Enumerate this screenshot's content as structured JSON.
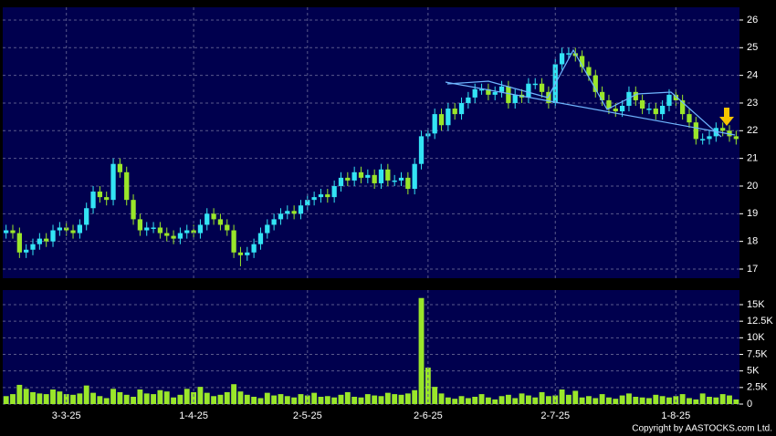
{
  "chart_data": [
    {
      "type": "candlestick",
      "open": [
        18.3,
        18.4,
        18.3,
        17.6,
        17.7,
        17.9,
        18.1,
        18.0,
        18.4,
        18.5,
        18.4,
        18.3,
        18.6,
        19.2,
        19.8,
        19.6,
        19.5,
        20.8,
        20.5,
        19.5,
        18.8,
        18.4,
        18.5,
        18.5,
        18.3,
        18.2,
        18.1,
        18.3,
        18.4,
        18.3,
        18.6,
        19.0,
        18.8,
        18.6,
        18.4,
        17.6,
        17.5,
        17.6,
        17.9,
        18.3,
        18.6,
        18.8,
        19.0,
        19.1,
        19.0,
        19.3,
        19.5,
        19.6,
        19.7,
        19.6,
        20.0,
        20.3,
        20.2,
        20.5,
        20.3,
        20.4,
        20.1,
        20.6,
        20.2,
        20.2,
        20.3,
        19.9,
        20.8,
        21.8,
        21.9,
        22.6,
        22.2,
        22.8,
        22.6,
        23.0,
        23.2,
        23.5,
        23.5,
        23.3,
        23.4,
        23.6,
        23.0,
        23.3,
        23.2,
        23.7,
        23.7,
        23.4,
        23.0,
        24.4,
        24.8,
        24.8,
        24.7,
        24.3,
        24.0,
        23.4,
        23.1,
        22.8,
        22.7,
        22.9,
        23.4,
        23.1,
        22.8,
        22.8,
        22.6,
        22.9,
        23.3,
        23.1,
        22.6,
        22.3,
        21.7,
        21.7,
        21.8,
        22.1,
        22.0,
        21.8
      ],
      "high": [
        18.6,
        18.6,
        18.5,
        17.9,
        18.1,
        18.3,
        18.3,
        18.6,
        18.7,
        18.7,
        18.6,
        18.8,
        19.4,
        20.0,
        20.0,
        19.8,
        21.0,
        21.0,
        20.7,
        19.7,
        19.0,
        18.7,
        18.7,
        18.7,
        18.5,
        18.4,
        18.5,
        18.6,
        18.6,
        18.8,
        19.2,
        19.2,
        19.0,
        18.8,
        18.6,
        17.8,
        17.8,
        18.1,
        18.5,
        18.8,
        19.0,
        19.2,
        19.3,
        19.3,
        19.5,
        19.7,
        19.8,
        19.9,
        19.9,
        20.2,
        20.5,
        20.5,
        20.7,
        20.7,
        20.6,
        20.6,
        20.8,
        20.8,
        20.4,
        20.5,
        20.5,
        21.0,
        22.0,
        22.1,
        22.8,
        22.8,
        23.0,
        23.0,
        23.2,
        23.4,
        23.7,
        23.7,
        23.7,
        23.6,
        23.8,
        23.8,
        23.5,
        23.5,
        23.9,
        23.9,
        23.9,
        23.6,
        24.6,
        25.0,
        25.0,
        25.0,
        24.9,
        24.5,
        24.2,
        23.6,
        23.3,
        23.0,
        23.1,
        23.6,
        23.6,
        23.3,
        23.0,
        23.0,
        23.1,
        23.5,
        23.5,
        23.3,
        22.8,
        22.5,
        21.9,
        22.0,
        22.3,
        22.3,
        22.2,
        22.0
      ],
      "low": [
        18.1,
        18.1,
        17.4,
        17.4,
        17.5,
        17.7,
        17.8,
        17.8,
        18.2,
        18.2,
        18.1,
        18.1,
        18.4,
        19.0,
        19.4,
        19.3,
        19.3,
        20.3,
        19.3,
        18.6,
        18.2,
        18.2,
        18.3,
        18.1,
        18.0,
        17.9,
        17.9,
        18.1,
        18.1,
        18.1,
        18.4,
        18.6,
        18.4,
        18.2,
        17.4,
        17.1,
        17.3,
        17.4,
        17.7,
        18.1,
        18.4,
        18.6,
        18.8,
        18.8,
        18.8,
        19.1,
        19.3,
        19.4,
        19.4,
        19.4,
        19.8,
        20.0,
        20.0,
        20.1,
        20.1,
        19.9,
        19.9,
        20.0,
        20.0,
        20.0,
        19.7,
        19.7,
        20.6,
        21.6,
        21.7,
        22.0,
        22.0,
        22.4,
        22.4,
        22.8,
        23.0,
        23.3,
        23.1,
        23.1,
        23.2,
        22.8,
        22.8,
        23.0,
        23.0,
        23.5,
        23.2,
        22.8,
        22.8,
        24.2,
        24.6,
        24.5,
        24.1,
        23.8,
        23.2,
        22.9,
        22.6,
        22.5,
        22.5,
        22.7,
        22.9,
        22.6,
        22.6,
        22.4,
        22.4,
        22.7,
        22.9,
        22.4,
        22.1,
        21.5,
        21.5,
        21.5,
        21.6,
        21.8,
        21.6,
        21.5
      ],
      "close": [
        18.4,
        18.3,
        17.6,
        17.7,
        17.9,
        18.1,
        18.0,
        18.4,
        18.5,
        18.4,
        18.3,
        18.6,
        19.2,
        19.8,
        19.6,
        19.5,
        20.8,
        20.5,
        19.5,
        18.8,
        18.4,
        18.5,
        18.5,
        18.3,
        18.2,
        18.1,
        18.3,
        18.4,
        18.3,
        18.6,
        19.0,
        18.8,
        18.6,
        18.4,
        17.6,
        17.5,
        17.6,
        17.9,
        18.3,
        18.6,
        18.8,
        19.0,
        19.1,
        19.0,
        19.3,
        19.5,
        19.6,
        19.7,
        19.6,
        20.0,
        20.3,
        20.2,
        20.5,
        20.3,
        20.4,
        20.1,
        20.6,
        20.2,
        20.2,
        20.3,
        19.9,
        20.8,
        21.8,
        21.9,
        22.6,
        22.2,
        22.8,
        22.6,
        23.0,
        23.2,
        23.5,
        23.5,
        23.3,
        23.4,
        23.6,
        23.0,
        23.3,
        23.2,
        23.7,
        23.7,
        23.4,
        23.0,
        24.4,
        24.8,
        24.8,
        24.7,
        24.3,
        24.0,
        23.4,
        23.1,
        22.8,
        22.7,
        22.9,
        23.4,
        23.1,
        22.8,
        22.8,
        22.6,
        22.9,
        23.3,
        23.1,
        22.6,
        22.3,
        21.7,
        21.7,
        21.8,
        22.1,
        22.0,
        21.8,
        21.7
      ],
      "up_color": "#33e4f4",
      "down_color": "#9ae62a",
      "ylim": [
        16.67,
        26.46
      ],
      "yticks": [
        17,
        18,
        19,
        20,
        21,
        22,
        23,
        24,
        25,
        26
      ],
      "grid": true
    },
    {
      "type": "bar",
      "categories": [
        null,
        null,
        null,
        null,
        null,
        null,
        null,
        null,
        null,
        "3-3-25",
        null,
        null,
        null,
        null,
        null,
        null,
        null,
        null,
        null,
        null,
        null,
        null,
        null,
        null,
        null,
        null,
        null,
        null,
        "1-4-25",
        null,
        null,
        null,
        null,
        null,
        null,
        null,
        null,
        null,
        null,
        null,
        null,
        null,
        null,
        null,
        null,
        "2-5-25",
        null,
        null,
        null,
        null,
        null,
        null,
        null,
        null,
        null,
        null,
        null,
        null,
        null,
        null,
        null,
        null,
        null,
        "2-6-25",
        null,
        null,
        null,
        null,
        null,
        null,
        null,
        null,
        null,
        null,
        null,
        null,
        null,
        null,
        null,
        null,
        null,
        null,
        "2-7-25",
        null,
        null,
        null,
        null,
        null,
        null,
        null,
        null,
        null,
        null,
        null,
        null,
        null,
        null,
        null,
        null,
        null,
        "1-8-25",
        null,
        null,
        null,
        null,
        null,
        null,
        null,
        null,
        null
      ],
      "values": [
        1200,
        1500,
        2900,
        2300,
        1800,
        1600,
        1500,
        2200,
        1900,
        1500,
        1400,
        1600,
        2800,
        1700,
        1200,
        900,
        2300,
        1800,
        1400,
        1100,
        2200,
        1600,
        1500,
        2100,
        1900,
        1000,
        1400,
        2300,
        1800,
        2600,
        1700,
        1200,
        1400,
        1800,
        3000,
        1900,
        1400,
        1100,
        900,
        1700,
        1300,
        1500,
        1200,
        1000,
        1500,
        1300,
        1700,
        1100,
        1200,
        1000,
        1400,
        1800,
        1100,
        1000,
        1500,
        1300,
        1200,
        1700,
        1500,
        1400,
        1600,
        2100,
        16000,
        5500,
        2600,
        1600,
        1000,
        800,
        1200,
        900,
        1100,
        1500,
        1000,
        700,
        1200,
        1400,
        900,
        1600,
        1300,
        1000,
        1800,
        1200,
        1300,
        2200,
        1400,
        2000,
        1000,
        1200,
        900,
        1500,
        1000,
        800,
        1300,
        1600,
        1100,
        1000,
        900,
        1400,
        1200,
        1000,
        1200,
        1500,
        900,
        700,
        1600,
        1100,
        1000,
        1500,
        1300,
        700
      ],
      "color": "#9ae62a",
      "ylim": [
        0,
        17200
      ],
      "yticks": [
        0,
        {
          "value": 2500,
          "label": "2.5K"
        },
        {
          "value": 5000,
          "label": "5K"
        },
        {
          "value": 7500,
          "label": "7.5K"
        },
        {
          "value": 10000,
          "label": "10K"
        },
        {
          "value": 12500,
          "label": "12.5K"
        },
        {
          "value": 15000,
          "label": "15K"
        }
      ],
      "grid": true
    }
  ],
  "copyright": "Copyright by AASTOCKS.com Ltd."
}
